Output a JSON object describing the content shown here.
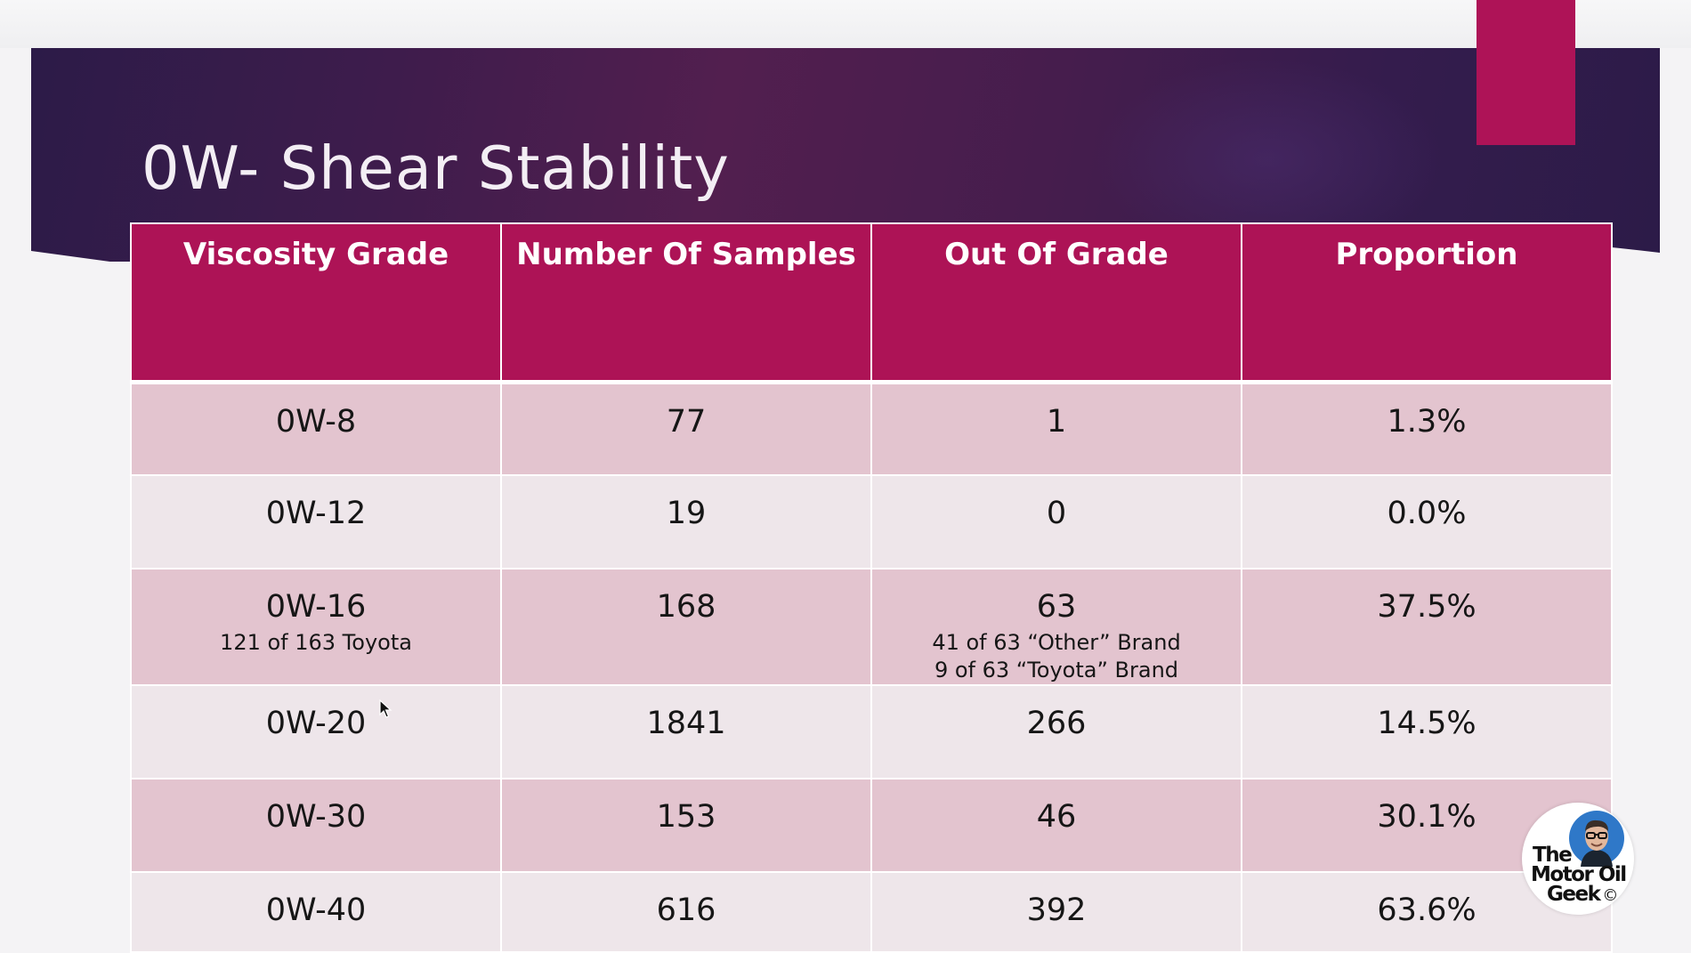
{
  "slide": {
    "title": "0W- Shear Stability"
  },
  "table": {
    "headers": [
      "Viscosity Grade",
      "Number Of Samples",
      "Out Of Grade",
      "Proportion"
    ],
    "rows": [
      {
        "grade": "0W-8",
        "grade_note": "",
        "samples": "77",
        "out_of_grade": "1",
        "out_note_1": "",
        "out_note_2": "",
        "proportion": "1.3%"
      },
      {
        "grade": "0W-12",
        "grade_note": "",
        "samples": "19",
        "out_of_grade": "0",
        "out_note_1": "",
        "out_note_2": "",
        "proportion": "0.0%"
      },
      {
        "grade": "0W-16",
        "grade_note": "121 of 163 Toyota",
        "samples": "168",
        "out_of_grade": "63",
        "out_note_1": "41 of 63 “Other” Brand",
        "out_note_2": "9 of 63 “Toyota” Brand",
        "proportion": "37.5%"
      },
      {
        "grade": "0W-20",
        "grade_note": "",
        "samples": "1841",
        "out_of_grade": "266",
        "out_note_1": "",
        "out_note_2": "",
        "proportion": "14.5%"
      },
      {
        "grade": "0W-30",
        "grade_note": "",
        "samples": "153",
        "out_of_grade": "46",
        "out_note_1": "",
        "out_note_2": "",
        "proportion": "30.1%"
      },
      {
        "grade": "0W-40",
        "grade_note": "",
        "samples": "616",
        "out_of_grade": "392",
        "out_note_1": "",
        "out_note_2": "",
        "proportion": "63.6%"
      }
    ]
  },
  "logo": {
    "line1": "The",
    "line2": "Motor Oil",
    "line3": "Geek",
    "copyright": "©"
  },
  "colors": {
    "header_bg": "#ad1356",
    "row_odd": "#e3c4cf",
    "row_even": "#eee6ea",
    "banner": "#3e1c4c",
    "accent_tab": "#ae1357"
  }
}
